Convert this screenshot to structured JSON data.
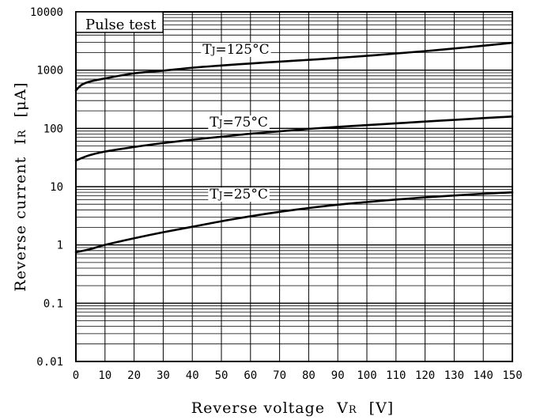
{
  "chart_data": {
    "type": "line",
    "note": "Pulse test",
    "xlabel": "Reverse voltage",
    "xlabel_symbol": "V",
    "xlabel_subscript": "R",
    "xlabel_unit": "[V]",
    "ylabel": "Reverse current",
    "ylabel_symbol": "I",
    "ylabel_subscript": "R",
    "ylabel_unit": "[μA]",
    "xlim": [
      0,
      150
    ],
    "ylim": [
      0.01,
      10000
    ],
    "yscale": "log",
    "grid": true,
    "x_ticks": [
      0,
      10,
      20,
      30,
      40,
      50,
      60,
      70,
      80,
      90,
      100,
      110,
      120,
      130,
      140,
      150
    ],
    "x_tick_labels": [
      "0",
      "10",
      "20",
      "30",
      "40",
      "50",
      "60",
      "70",
      "80",
      "90",
      "100",
      "110",
      "120",
      "130",
      "140",
      "150"
    ],
    "y_ticks": [
      0.01,
      0.1,
      1,
      10,
      100,
      1000,
      10000
    ],
    "y_tick_labels": [
      "0.01",
      "0.1",
      "1",
      "10",
      "100",
      "1000",
      "10000"
    ],
    "series": [
      {
        "name": "TJ=125°C",
        "label_main": "T",
        "label_sub": "J",
        "label_rest": "=125°C",
        "label_x": 55,
        "label_y": 2300,
        "x": [
          0,
          2,
          5,
          10,
          20,
          30,
          40,
          50,
          60,
          70,
          80,
          90,
          100,
          110,
          120,
          130,
          140,
          150
        ],
        "values": [
          450,
          560,
          640,
          720,
          880,
          980,
          1100,
          1200,
          1300,
          1400,
          1500,
          1620,
          1760,
          1930,
          2120,
          2350,
          2620,
          2950
        ]
      },
      {
        "name": "TJ=75°C",
        "label_main": "T",
        "label_sub": "J",
        "label_rest": "=75°C",
        "label_x": 56,
        "label_y": 130,
        "x": [
          0,
          2,
          5,
          10,
          20,
          30,
          40,
          50,
          60,
          70,
          80,
          90,
          100,
          110,
          120,
          130,
          140,
          150
        ],
        "values": [
          28,
          31,
          35,
          40,
          48,
          56,
          64,
          72,
          81,
          89,
          98,
          106,
          114,
          122,
          131,
          140,
          150,
          160
        ]
      },
      {
        "name": "TJ=25°C",
        "label_main": "T",
        "label_sub": "J",
        "label_rest": "=25°C",
        "label_x": 56,
        "label_y": 7.5,
        "x": [
          0,
          5,
          10,
          20,
          30,
          40,
          50,
          60,
          70,
          80,
          90,
          100,
          110,
          120,
          130,
          140,
          150
        ],
        "values": [
          0.75,
          0.85,
          1.0,
          1.3,
          1.65,
          2.05,
          2.55,
          3.1,
          3.7,
          4.3,
          4.9,
          5.45,
          6.0,
          6.55,
          7.05,
          7.55,
          8.0
        ]
      }
    ]
  }
}
